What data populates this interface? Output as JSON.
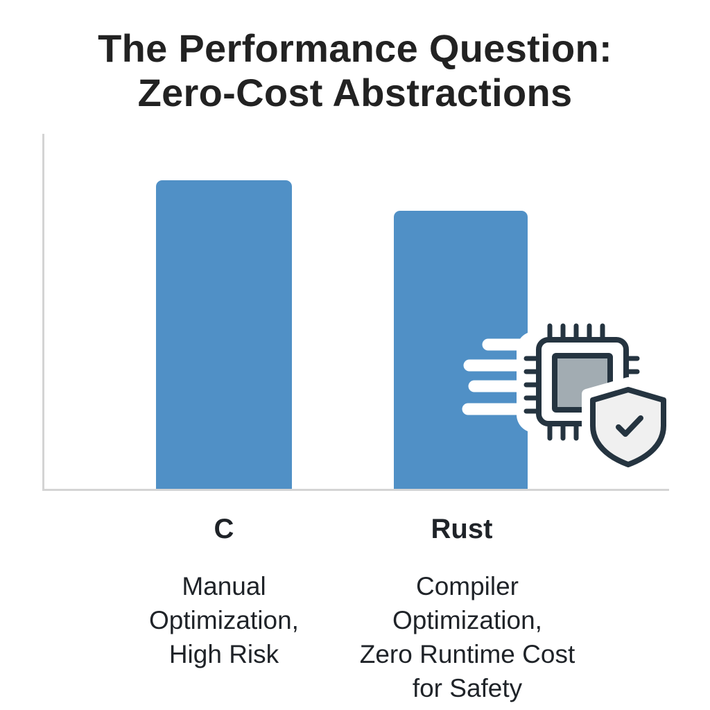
{
  "title": {
    "lines": [
      "The Performance Question:",
      "Zero-Cost Abstractions"
    ]
  },
  "colors": {
    "bar": "#5090c6",
    "axis": "#d4d4d4",
    "text": "#1f2328",
    "icon_stroke": "#253440",
    "icon_fill_chip_core": "#a2acb2",
    "icon_fill_shield": "#f0f0f0"
  },
  "categories": [
    {
      "label": "C",
      "description_lines": [
        "Manual",
        "Optimization,",
        "High Risk"
      ]
    },
    {
      "label": "Rust",
      "description_lines": [
        "Compiler",
        "Optimization,",
        "Zero Runtime Cost",
        "for Safety"
      ]
    }
  ],
  "icons": {
    "illustration": "cpu-chip-with-shield-checkmark-and-speed-lines"
  },
  "chart_data": {
    "type": "bar",
    "title": "The Performance Question: Zero-Cost Abstractions",
    "categories": [
      "C",
      "Rust"
    ],
    "values": [
      100,
      90
    ],
    "value_note": "Relative bar heights (no numeric axis shown); Rust bar is about 90% of C bar height",
    "category_descriptions": [
      "Manual Optimization, High Risk",
      "Compiler Optimization, Zero Runtime Cost for Safety"
    ],
    "xlabel": "",
    "ylabel": "",
    "ylim": [
      0,
      115
    ],
    "grid": false,
    "legend": "none",
    "annotations": [
      "CPU chip icon with shield and checkmark overlapping the Rust bar"
    ]
  }
}
